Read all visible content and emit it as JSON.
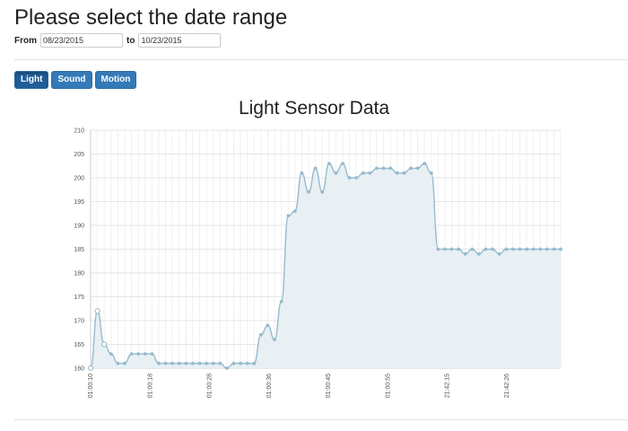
{
  "page": {
    "title": "Please select the date range",
    "from_label": "From",
    "from_value": "08/23/2015",
    "to_label": "to",
    "to_value": "10/23/2015"
  },
  "buttons": [
    {
      "label": "Light",
      "active": true
    },
    {
      "label": "Sound",
      "active": false
    },
    {
      "label": "Motion",
      "active": false
    }
  ],
  "colors": {
    "button": "#337ab7",
    "series_line": "#97bbcd",
    "series_fill": "#e8f0f4"
  },
  "chart_data": {
    "type": "area",
    "title": "Light Sensor Data",
    "ylim": [
      160,
      210
    ],
    "yticks": [
      160,
      165,
      170,
      175,
      180,
      185,
      190,
      195,
      200,
      205,
      210
    ],
    "grid": true,
    "x_tick_labels": [
      "01:00:10",
      "01:00:18",
      "01:00:28",
      "01:00:36",
      "01:00:45",
      "01:00:55",
      "21:42:15",
      "21:42:26"
    ],
    "series": [
      {
        "values": [
          160,
          172,
          165,
          163,
          161,
          161,
          163,
          163,
          163,
          163,
          161,
          161,
          161,
          161,
          161,
          161,
          161,
          161,
          161,
          161,
          160,
          161,
          161,
          161,
          161,
          167,
          169,
          166,
          174,
          192,
          193,
          201,
          197,
          202,
          197,
          203,
          201,
          203,
          200,
          200,
          201,
          201,
          202,
          202,
          202,
          201,
          201,
          202,
          202,
          203,
          201,
          185,
          185,
          185,
          185,
          184,
          185,
          184,
          185,
          185,
          184,
          185,
          185,
          185,
          185,
          185,
          185,
          185,
          185,
          185
        ]
      }
    ]
  }
}
